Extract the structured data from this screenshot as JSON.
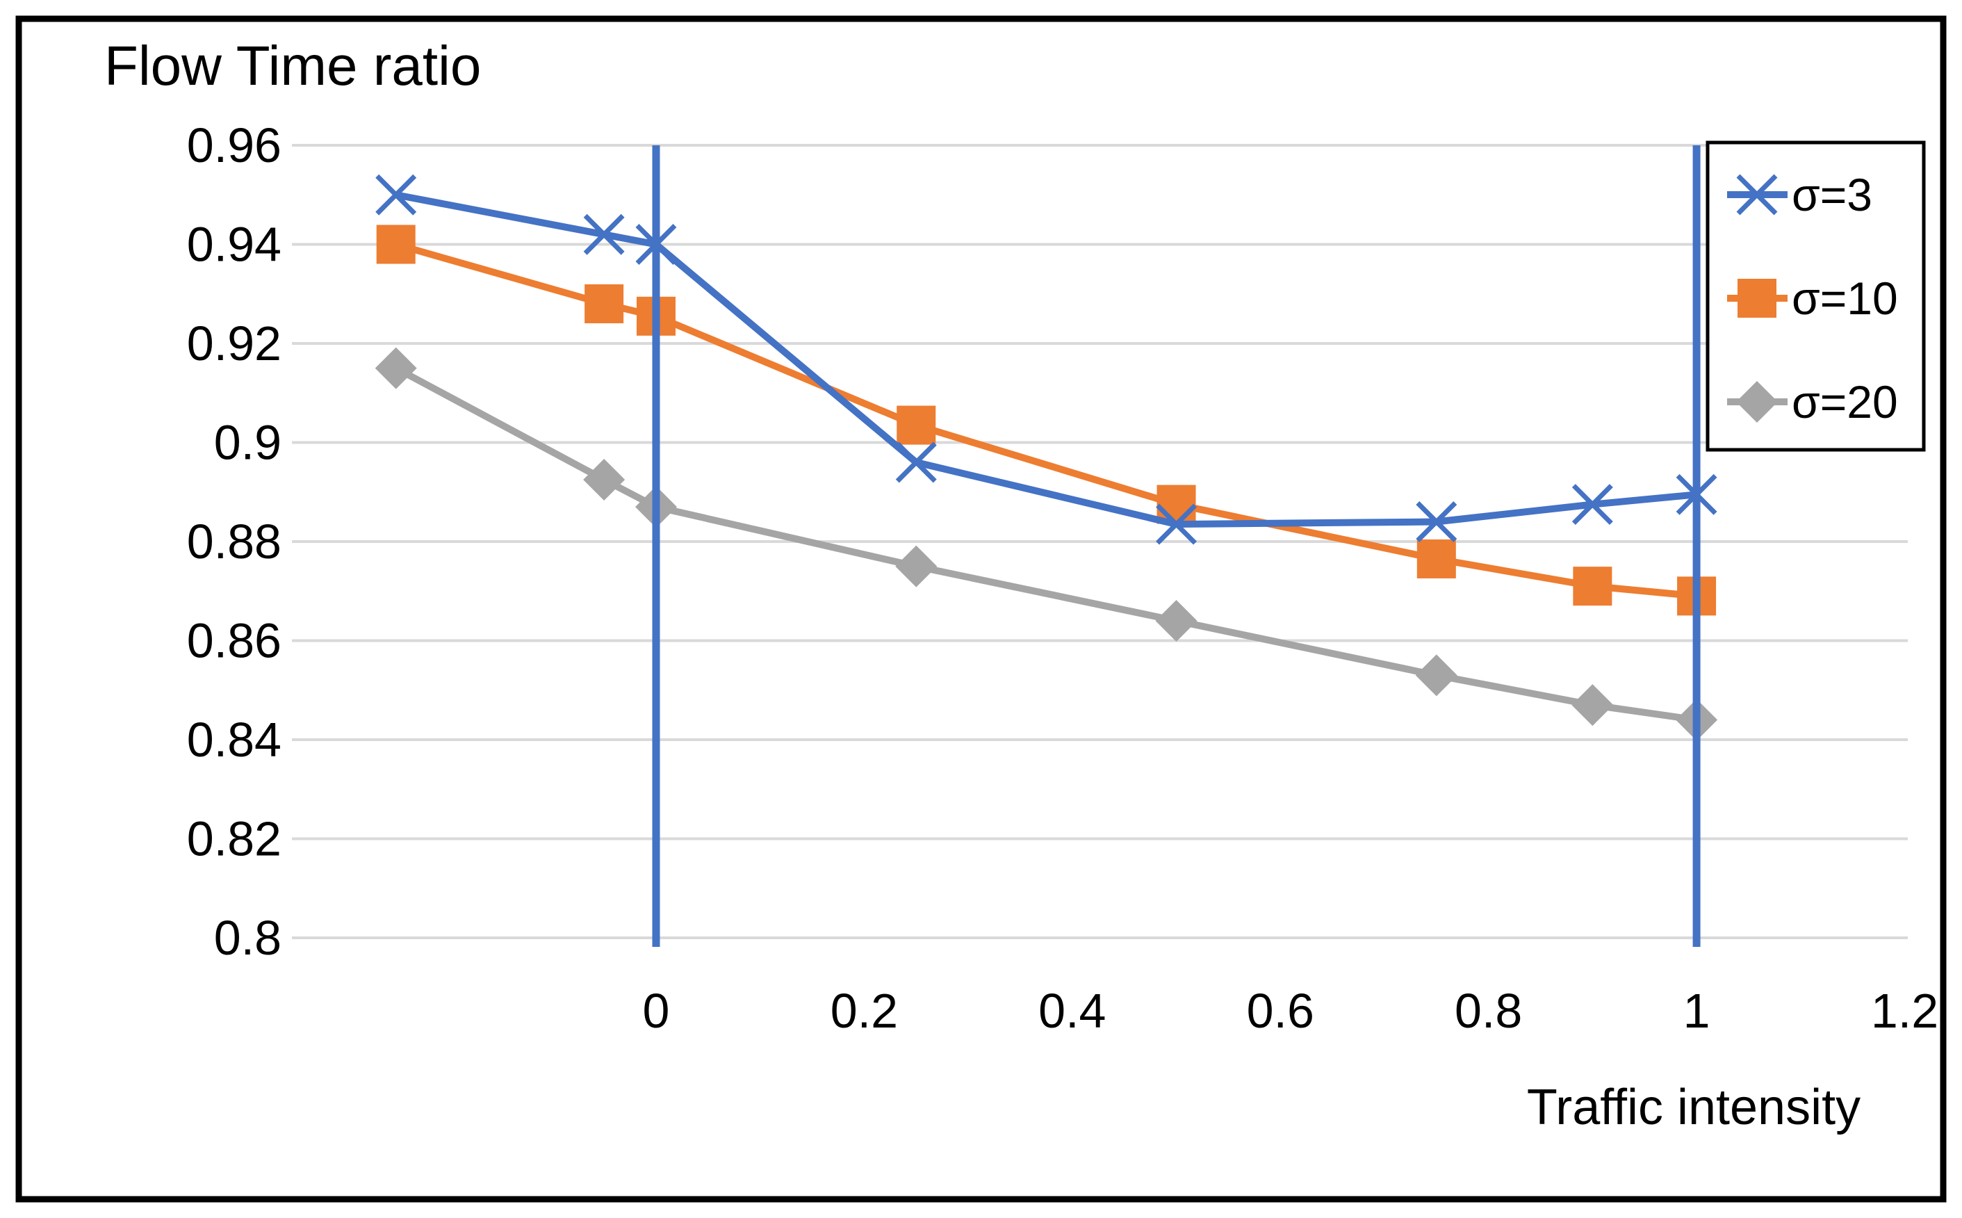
{
  "title": "Flow Time ratio",
  "xlabel": "Traffic intensity",
  "colors": {
    "series_blue": "#4472C4",
    "series_orange": "#ED7D31",
    "series_gray": "#A5A5A5",
    "gridline": "#D9D9D9",
    "reference_line": "#4472C4",
    "border": "#000000",
    "background": "#FFFFFF"
  },
  "chart_data": {
    "type": "line",
    "title": "Flow Time ratio",
    "xlabel": "Traffic intensity",
    "ylabel": "",
    "x": [
      -0.25,
      -0.05,
      0,
      0.25,
      0.5,
      0.75,
      0.9,
      1
    ],
    "series": [
      {
        "name": "σ=3",
        "marker": "x",
        "color": "#4472C4",
        "values": [
          0.95,
          0.942,
          0.94,
          0.896,
          0.8835,
          0.884,
          0.8875,
          0.8895
        ]
      },
      {
        "name": "σ=10",
        "marker": "square",
        "color": "#ED7D31",
        "values": [
          0.94,
          0.928,
          0.9255,
          0.9035,
          0.8875,
          0.8765,
          0.871,
          0.869
        ]
      },
      {
        "name": "σ=20",
        "marker": "diamond",
        "color": "#A5A5A5",
        "values": [
          0.915,
          0.8925,
          0.887,
          0.875,
          0.864,
          0.853,
          0.847,
          0.844
        ]
      }
    ],
    "xlim": [
      -0.35,
      1.203
    ],
    "ylim": [
      0.8,
      0.96
    ],
    "xticks": [
      0,
      0.2,
      0.4,
      0.6,
      0.8,
      1,
      1.2
    ],
    "xtick_labels": [
      "0",
      "0.2",
      "0.4",
      "0.6",
      "0.8",
      "1",
      "1.2"
    ],
    "yticks": [
      0.96,
      0.94,
      0.92,
      0.9,
      0.88,
      0.86,
      0.84,
      0.82,
      0.8
    ],
    "ytick_labels": [
      "0.96",
      "0.94",
      "0.92",
      "0.9",
      "0.88",
      "0.86",
      "0.84",
      "0.82",
      "0.8"
    ],
    "vertical_reference_lines": {
      "x": [
        0,
        1
      ],
      "color": "#4472C4"
    },
    "grid": "horizontal-only",
    "legend_position": "top-right",
    "legend_entries": [
      "σ=3",
      "σ=10",
      "σ=20"
    ]
  }
}
